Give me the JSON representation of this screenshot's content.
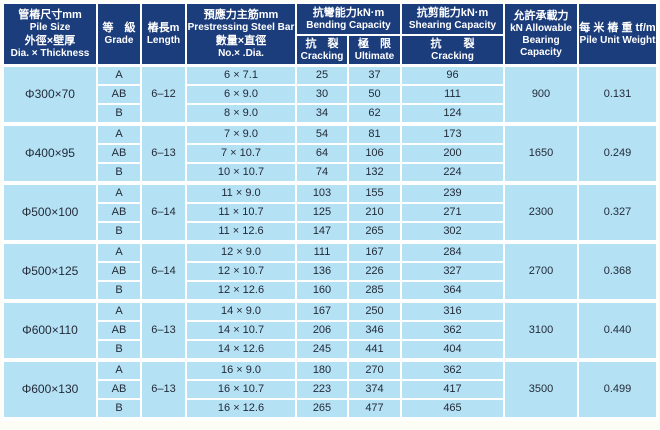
{
  "colors": {
    "header_bg": "#1c3d7c",
    "cell_bg": "#b5e1f4",
    "grid": "#ffffff",
    "header_text": "#ffffff",
    "body_text": "#222b38",
    "page_bg": "#fdfdf6"
  },
  "header": {
    "pile_size": {
      "zh1": "管樁尺寸mm",
      "en1": "Pile Size",
      "zh2": "外徑×壁厚",
      "en2": "Dia. × Thickness"
    },
    "grade": {
      "zh": "等　級",
      "en": "Grade"
    },
    "length": {
      "zh": "樁長m",
      "en": "Length"
    },
    "steel": {
      "zh1": "預應力主筋mm",
      "en1": "Prestressing Steel Bar",
      "zh2": "數量×直徑",
      "en2": "No.× .Dia."
    },
    "bending": {
      "zh": "抗彎能力kN·m",
      "en": "Bending Capacity"
    },
    "bending_cracking": {
      "zh": "抗　裂",
      "en": "Cracking"
    },
    "bending_ultimate": {
      "zh": "極　限",
      "en": "Ultimate"
    },
    "shearing": {
      "zh": "抗剪能力kN·m",
      "en": "Shearing Capacity"
    },
    "shearing_cracking": {
      "zh": "抗　　裂",
      "en": "Cracking"
    },
    "bearing": {
      "zh": "允許承載力",
      "en1": "kN Allowable",
      "en2": "Bearing",
      "en3": "Capacity"
    },
    "weight": {
      "zh": "每 米 樁 重 tf/m",
      "en": "Pile Unit Weight"
    }
  },
  "groups": [
    {
      "size": "Φ300×70",
      "length": "6–12",
      "bearing": "900",
      "weight": "0.131",
      "rows": [
        {
          "grade": "A",
          "bars": "6 × 7.1",
          "bend_crack": "25",
          "bend_ult": "37",
          "shear_crack": "96"
        },
        {
          "grade": "AB",
          "bars": "6 × 9.0",
          "bend_crack": "30",
          "bend_ult": "50",
          "shear_crack": "111"
        },
        {
          "grade": "B",
          "bars": "8 × 9.0",
          "bend_crack": "34",
          "bend_ult": "62",
          "shear_crack": "124"
        }
      ]
    },
    {
      "size": "Φ400×95",
      "length": "6–13",
      "bearing": "1650",
      "weight": "0.249",
      "rows": [
        {
          "grade": "A",
          "bars": "7 × 9.0",
          "bend_crack": "54",
          "bend_ult": "81",
          "shear_crack": "173"
        },
        {
          "grade": "AB",
          "bars": "7 × 10.7",
          "bend_crack": "64",
          "bend_ult": "106",
          "shear_crack": "200"
        },
        {
          "grade": "B",
          "bars": "10 × 10.7",
          "bend_crack": "74",
          "bend_ult": "132",
          "shear_crack": "224"
        }
      ]
    },
    {
      "size": "Φ500×100",
      "length": "6–14",
      "bearing": "2300",
      "weight": "0.327",
      "rows": [
        {
          "grade": "A",
          "bars": "11 × 9.0",
          "bend_crack": "103",
          "bend_ult": "155",
          "shear_crack": "239"
        },
        {
          "grade": "AB",
          "bars": "11 × 10.7",
          "bend_crack": "125",
          "bend_ult": "210",
          "shear_crack": "271"
        },
        {
          "grade": "B",
          "bars": "11 × 12.6",
          "bend_crack": "147",
          "bend_ult": "265",
          "shear_crack": "302"
        }
      ]
    },
    {
      "size": "Φ500×125",
      "length": "6–14",
      "bearing": "2700",
      "weight": "0.368",
      "rows": [
        {
          "grade": "A",
          "bars": "12 × 9.0",
          "bend_crack": "111",
          "bend_ult": "167",
          "shear_crack": "284"
        },
        {
          "grade": "AB",
          "bars": "12 × 10.7",
          "bend_crack": "136",
          "bend_ult": "226",
          "shear_crack": "327"
        },
        {
          "grade": "B",
          "bars": "12 × 12.6",
          "bend_crack": "160",
          "bend_ult": "285",
          "shear_crack": "364"
        }
      ]
    },
    {
      "size": "Φ600×110",
      "length": "6–13",
      "bearing": "3100",
      "weight": "0.440",
      "rows": [
        {
          "grade": "A",
          "bars": "14 × 9.0",
          "bend_crack": "167",
          "bend_ult": "250",
          "shear_crack": "316"
        },
        {
          "grade": "AB",
          "bars": "14 × 10.7",
          "bend_crack": "206",
          "bend_ult": "346",
          "shear_crack": "362"
        },
        {
          "grade": "B",
          "bars": "14 × 12.6",
          "bend_crack": "245",
          "bend_ult": "441",
          "shear_crack": "404"
        }
      ]
    },
    {
      "size": "Φ600×130",
      "length": "6–13",
      "bearing": "3500",
      "weight": "0.499",
      "rows": [
        {
          "grade": "A",
          "bars": "16 × 9.0",
          "bend_crack": "180",
          "bend_ult": "270",
          "shear_crack": "362"
        },
        {
          "grade": "AB",
          "bars": "16 × 10.7",
          "bend_crack": "223",
          "bend_ult": "374",
          "shear_crack": "417"
        },
        {
          "grade": "B",
          "bars": "16 × 12.6",
          "bend_crack": "265",
          "bend_ult": "477",
          "shear_crack": "465"
        }
      ]
    }
  ]
}
